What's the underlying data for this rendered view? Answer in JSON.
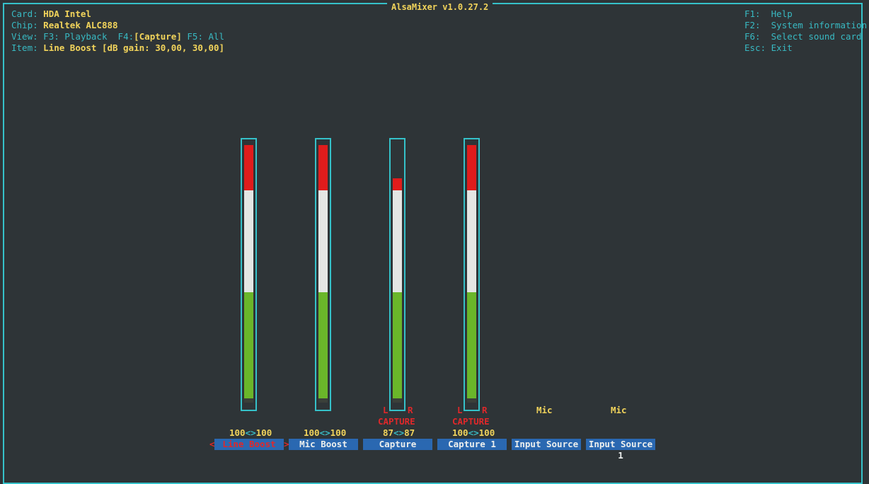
{
  "window": {
    "title": "AlsaMixer v1.0.27.2"
  },
  "info": {
    "card_label": "Card:",
    "card_value": "HDA Intel",
    "chip_label": "Chip:",
    "chip_value": "Realtek ALC888",
    "view_label": "View:",
    "view_f3": "F3: Playback",
    "view_f4_key": "F4:",
    "view_f4_value": "[Capture]",
    "view_f5": "F5: All",
    "item_label": "Item:",
    "item_value": "Line Boost [dB gain: 30,00, 30,00]"
  },
  "help": [
    {
      "key": "F1:",
      "text": "Help"
    },
    {
      "key": "F2:",
      "text": "System information"
    },
    {
      "key": "F6:",
      "text": "Select sound card"
    },
    {
      "key": "Esc:",
      "text": "Exit"
    }
  ],
  "controls": [
    {
      "name": "Line Boost",
      "left_value": "100",
      "sep": "<>",
      "right_value": "100",
      "level_percent": 100,
      "selected": true,
      "arrow_left": "<",
      "arrow_right": ">"
    },
    {
      "name": "Mic Boost",
      "left_value": "100",
      "sep": "<>",
      "right_value": "100",
      "level_percent": 100,
      "selected": false
    },
    {
      "name": "Capture",
      "left_value": "87",
      "sep": "<>",
      "right_value": "87",
      "level_percent": 87,
      "capture_l": "L",
      "capture_r": "R",
      "capture_label": "CAPTURE"
    },
    {
      "name": "Capture 1",
      "left_value": "100",
      "sep": "<>",
      "right_value": "100",
      "level_percent": 100,
      "capture_l": "L",
      "capture_r": "R",
      "capture_label": "CAPTURE"
    },
    {
      "name": "Input Source",
      "enum_value": "Mic"
    },
    {
      "name": "Input Source 1",
      "enum_value": "Mic"
    }
  ],
  "colors": {
    "border": "#35c1c9",
    "label": "#38b9c2",
    "value": "#f2d45b",
    "meter_red": "#e01c1c",
    "meter_white": "#e4e6e4",
    "meter_green": "#6ab62a",
    "name_bg": "#2a68b1",
    "selected": "#e0282a"
  }
}
